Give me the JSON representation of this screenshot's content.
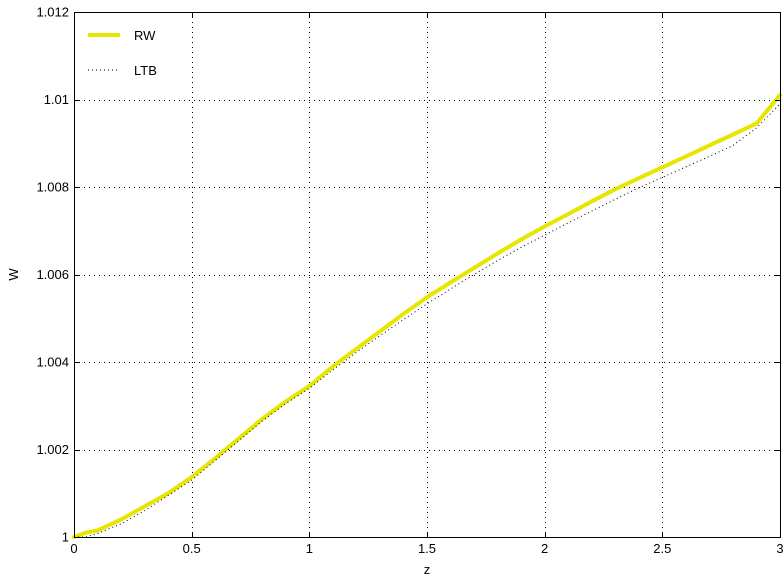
{
  "chart_data": {
    "type": "line",
    "title": "",
    "xlabel": "z",
    "ylabel": "W",
    "xlim": [
      0,
      3
    ],
    "ylim": [
      1,
      1.012
    ],
    "xticks": [
      0,
      0.5,
      1,
      1.5,
      2,
      2.5,
      3
    ],
    "xtick_labels": [
      "0",
      "0.5",
      "1",
      "1.5",
      "2",
      "2.5",
      "3"
    ],
    "yticks": [
      1,
      1.002,
      1.004,
      1.006,
      1.008,
      1.01,
      1.012
    ],
    "ytick_labels": [
      "1",
      "1.002",
      "1.004",
      "1.006",
      "1.008",
      "1.01",
      "1.012"
    ],
    "grid": true,
    "grid_style": "dotted",
    "legend": "top-left",
    "series": [
      {
        "name": "RW",
        "color": "#e6e600",
        "line_style": "solid-thick",
        "x": [
          0,
          0.05,
          0.1,
          0.2,
          0.3,
          0.4,
          0.5,
          0.6,
          0.7,
          0.8,
          0.9,
          1.0,
          1.1,
          1.2,
          1.3,
          1.4,
          1.5,
          1.6,
          1.7,
          1.8,
          1.9,
          2.0,
          2.1,
          2.2,
          2.3,
          2.4,
          2.5,
          2.6,
          2.7,
          2.8,
          2.9,
          3.0
        ],
        "y": [
          1.0,
          1.0001,
          1.00015,
          1.0004,
          1.0007,
          1.001,
          1.00137,
          1.0018,
          1.00225,
          1.0027,
          1.0031,
          1.00345,
          1.0039,
          1.0043,
          1.0047,
          1.0051,
          1.00548,
          1.00582,
          1.00615,
          1.00648,
          1.0068,
          1.0071,
          1.00738,
          1.00767,
          1.00795,
          1.0082,
          1.00845,
          1.0087,
          1.00895,
          1.0092,
          1.00945,
          1.0101
        ]
      },
      {
        "name": "LTB",
        "color": "#000000",
        "line_style": "dotted",
        "x": [
          0,
          0.05,
          0.1,
          0.2,
          0.3,
          0.4,
          0.5,
          0.6,
          0.7,
          0.8,
          0.9,
          1.0,
          1.1,
          1.2,
          1.3,
          1.4,
          1.5,
          1.6,
          1.7,
          1.8,
          1.9,
          2.0,
          2.1,
          2.2,
          2.3,
          2.4,
          2.5,
          2.6,
          2.7,
          2.8,
          2.9,
          3.0
        ],
        "y": [
          1.0,
          1.0,
          1.00008,
          1.0003,
          1.0006,
          1.00095,
          1.0013,
          1.00175,
          1.0022,
          1.00265,
          1.00305,
          1.0034,
          1.00382,
          1.00422,
          1.0046,
          1.00497,
          1.00533,
          1.00567,
          1.006,
          1.00632,
          1.00662,
          1.0069,
          1.00718,
          1.00745,
          1.00772,
          1.00798,
          1.00822,
          1.00846,
          1.0087,
          1.00895,
          1.00935,
          1.0099
        ]
      }
    ]
  }
}
